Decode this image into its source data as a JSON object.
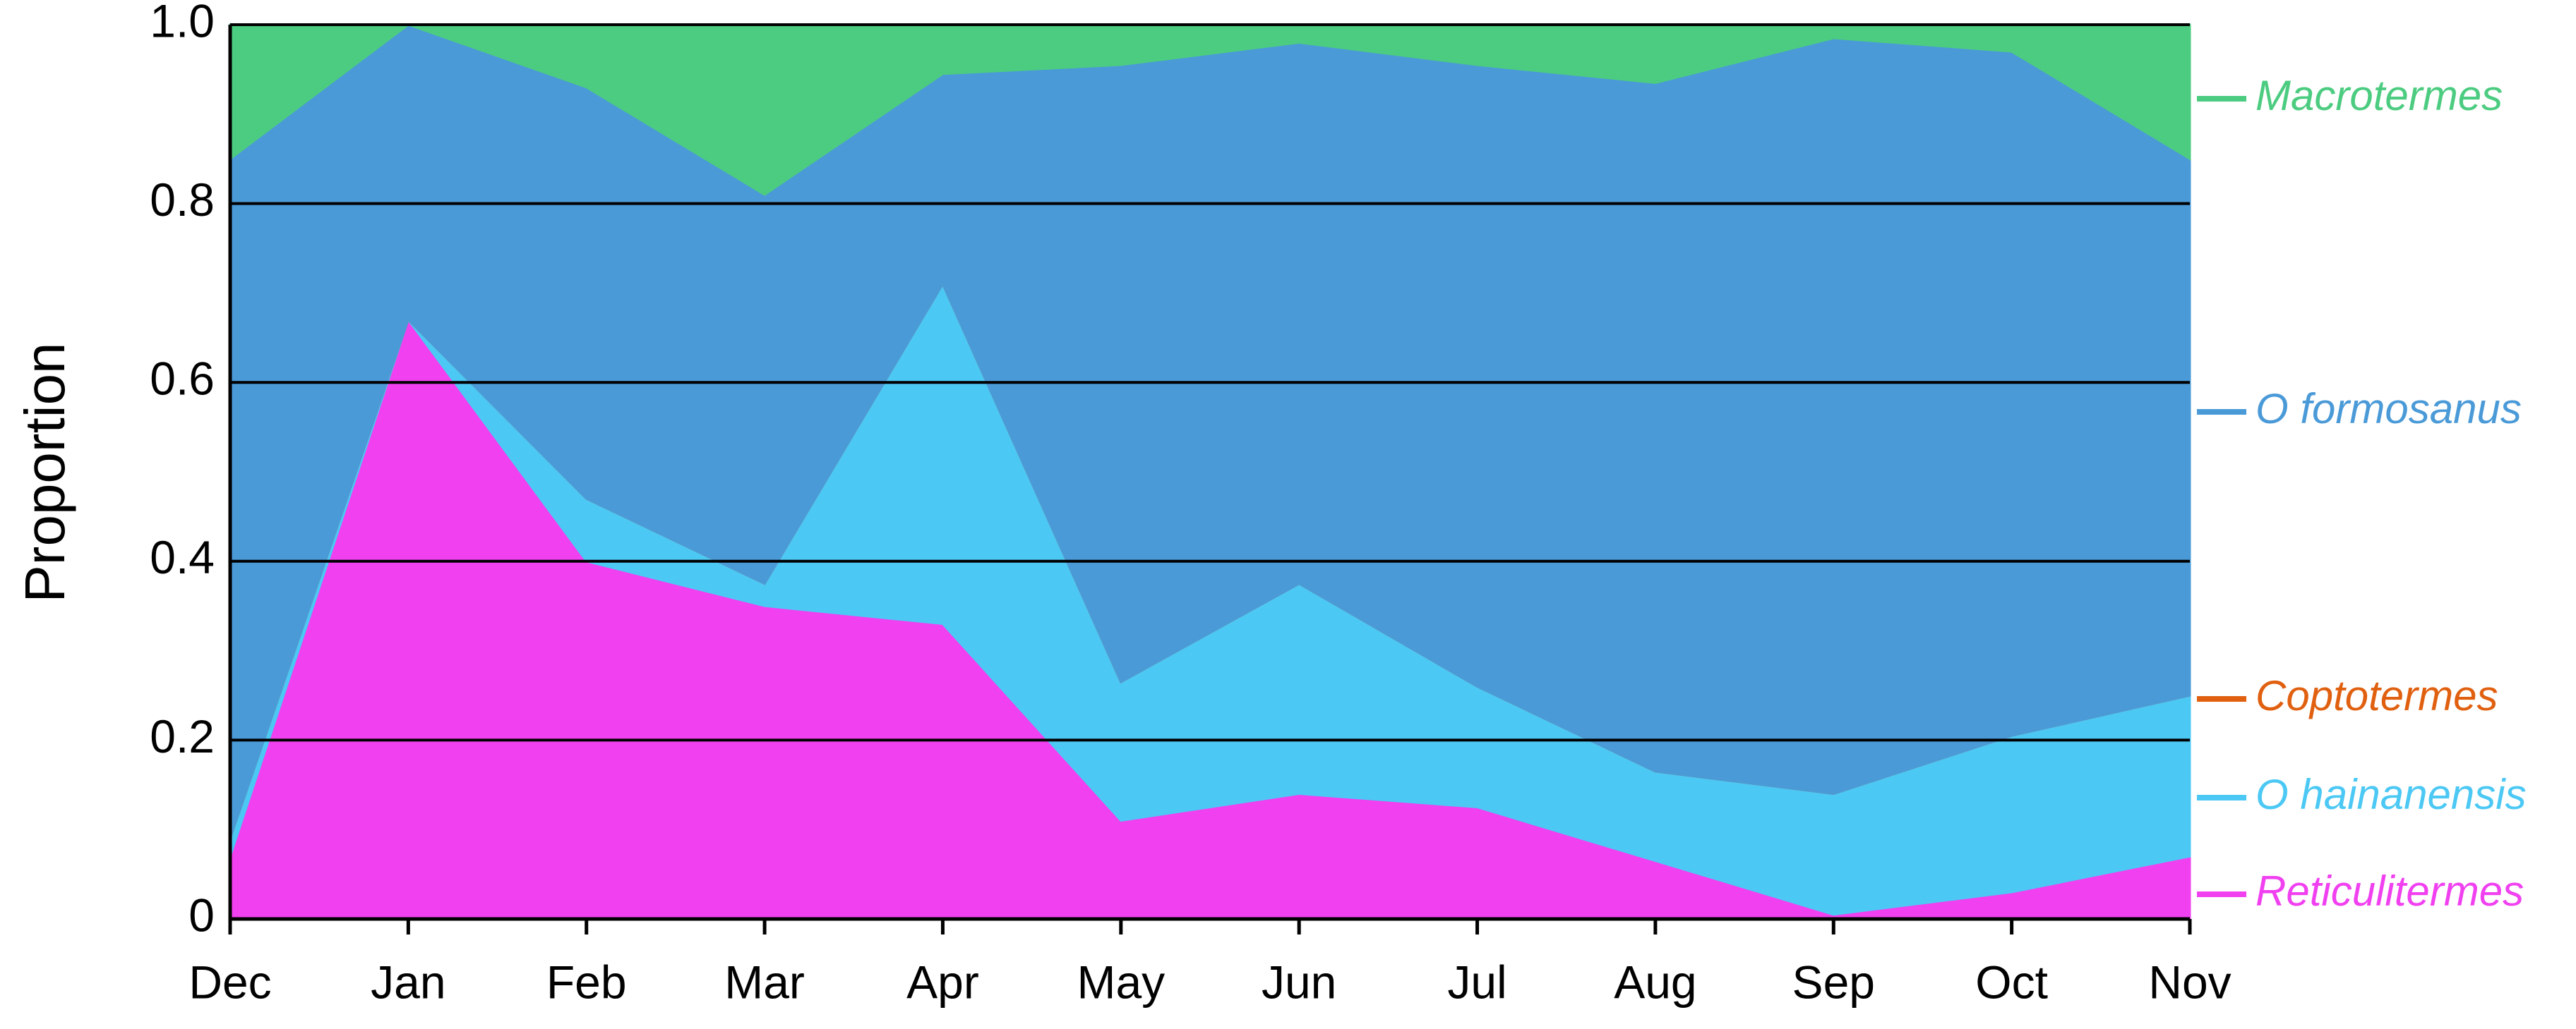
{
  "chart_data": {
    "type": "stacked-area",
    "ylabel": "Proportion",
    "categories": [
      "Dec",
      "Jan",
      "Feb",
      "Mar",
      "Apr",
      "May",
      "Jun",
      "Jul",
      "Aug",
      "Sep",
      "Oct",
      "Nov"
    ],
    "series": [
      {
        "name": "Reticulitermes",
        "color": "#f040f0",
        "values": [
          0.07,
          0.67,
          0.4,
          0.35,
          0.33,
          0.11,
          0.14,
          0.125,
          0.065,
          0.005,
          0.03,
          0.07
        ]
      },
      {
        "name": "O hainanensis",
        "color": "#4cc8f4",
        "values": [
          0.02,
          0,
          0.07,
          0.025,
          0.38,
          0.155,
          0.235,
          0.135,
          0.1,
          0.135,
          0.175,
          0.18
        ]
      },
      {
        "name": "Coptotermes",
        "color": "#e06010",
        "values": [
          0,
          0,
          0,
          0,
          0,
          0,
          0,
          0,
          0,
          0,
          0,
          0
        ]
      },
      {
        "name": "O formosanus",
        "color": "#4a9ad8",
        "values": [
          0.76,
          0.33,
          0.46,
          0.435,
          0.235,
          0.69,
          0.605,
          0.695,
          0.77,
          0.845,
          0.765,
          0.6
        ]
      },
      {
        "name": "Macrotermes",
        "color": "#4ccc80",
        "values": [
          0.15,
          0,
          0.07,
          0.19,
          0.055,
          0.045,
          0.02,
          0.045,
          0.065,
          0.015,
          0.03,
          0.15
        ]
      }
    ],
    "ylim": [
      0,
      1
    ],
    "yticks": [
      0,
      0.2,
      0.4,
      0.6,
      0.8,
      {
        "value": 1,
        "label": "1.0"
      }
    ],
    "grid": true
  }
}
